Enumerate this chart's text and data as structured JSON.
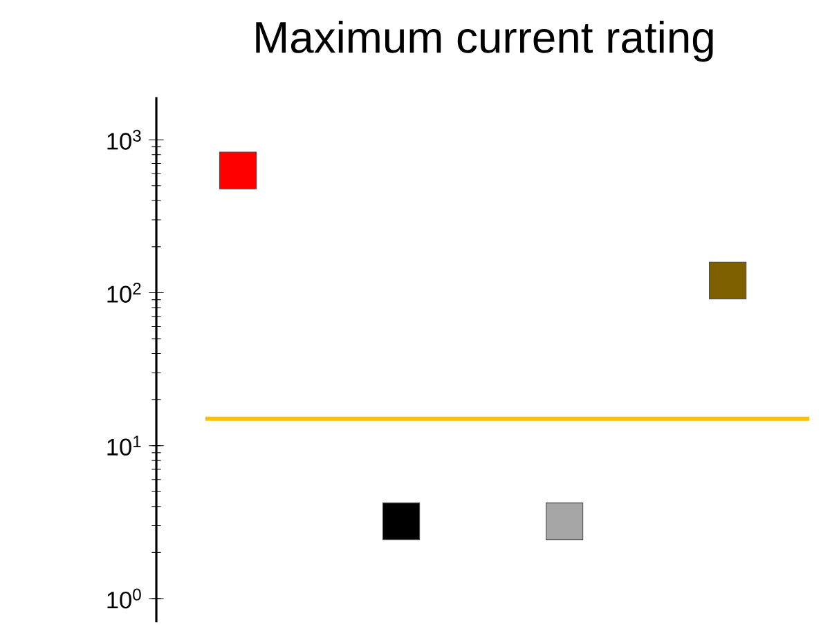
{
  "chart_data": {
    "type": "scatter",
    "title": "Maximum current rating",
    "categories": [
      null,
      null,
      null,
      null
    ],
    "values": [
      630,
      3.2,
      3.2,
      120
    ],
    "colors": [
      "#ff0000",
      "#000000",
      "#a6a6a6",
      "#7f6000"
    ],
    "marker": "square",
    "log": "y",
    "ylim": [
      0.7,
      1900
    ],
    "yticks": [
      {
        "value": 1,
        "label": "10$^{0}$"
      },
      {
        "value": 10,
        "label": "10$^{1}$"
      },
      {
        "value": 100,
        "label": "10$^{2}$"
      },
      {
        "value": 1000,
        "label": "10$^{3}$"
      }
    ],
    "tick_labels": "y",
    "ref_lines": [
      {
        "axis": "y",
        "value": 15,
        "color": "#ffc000"
      }
    ]
  }
}
